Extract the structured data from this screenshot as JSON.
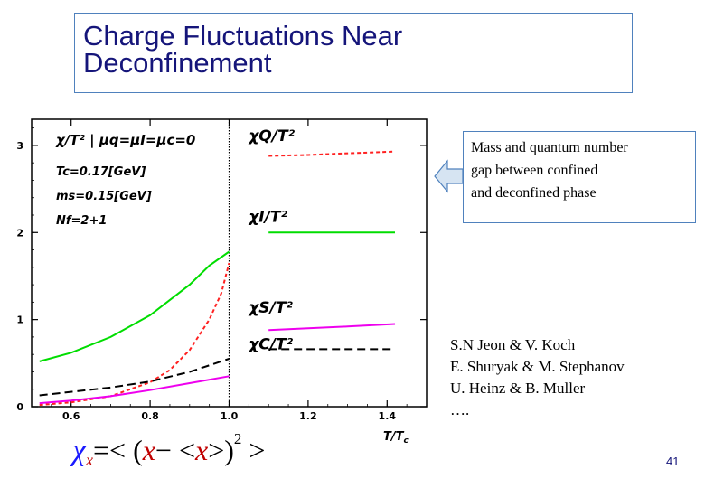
{
  "slide": {
    "title_line1": "Charge Fluctuations Near",
    "title_line2": "Deconfinement",
    "callout_lines": [
      "Mass and quantum number",
      "gap between confined",
      "and deconfined phase"
    ],
    "authors": [
      "S.N Jeon & V. Koch",
      "E. Shuryak & M. Stephanov",
      "U. Heinz & B. Muller",
      "…."
    ],
    "page_number": "41",
    "formula": {
      "chi": "χ",
      "sub": "x",
      "eq_open": "=< (",
      "x1": "x",
      "minus": "− <",
      "x2": "x",
      "close": ">)",
      "sup": "2",
      "end": " >"
    },
    "colors": {
      "title": "#15157a",
      "box_border": "#4f81bd",
      "arrow_fill": "#d6e4f2"
    },
    "arrow_icon": "left-arrow"
  },
  "chart_data": {
    "type": "line",
    "xlim": [
      0.5,
      1.5
    ],
    "ylim": [
      0,
      3.3
    ],
    "x_ticks": [
      "0.6",
      "0.8",
      "1.0",
      "1.2",
      "1.4"
    ],
    "x_tick_values": [
      0.6,
      0.8,
      1.0,
      1.2,
      1.4
    ],
    "y_ticks": [
      "0",
      "1",
      "2",
      "3"
    ],
    "y_tick_values": [
      0,
      1,
      2,
      3
    ],
    "xlabel": "T/T",
    "xlabel_sub": "c",
    "transition_x": 1.0,
    "grid": false,
    "annotations": [
      {
        "text": "χ/T² | μq=μI=μc=0"
      },
      {
        "text": "Tc=0.17[GeV]"
      },
      {
        "text": "ms=0.15[GeV]"
      },
      {
        "text": "Nf=2+1"
      }
    ],
    "series": [
      {
        "name": "χQ/T²",
        "label_pos": [
          1.05,
          3.05
        ],
        "color": "#ff2020",
        "dash": "4,3",
        "x": [
          0.52,
          0.6,
          0.7,
          0.8,
          0.85,
          0.9,
          0.95,
          0.98,
          1.0,
          1.1,
          1.2,
          1.3,
          1.42
        ],
        "y": [
          0.02,
          0.05,
          0.12,
          0.28,
          0.42,
          0.65,
          1.0,
          1.3,
          1.65,
          2.88,
          2.89,
          2.91,
          2.93
        ]
      },
      {
        "name": "χI/T²",
        "label_pos": [
          1.05,
          2.12
        ],
        "color": "#00dd00",
        "dash": "",
        "x": [
          0.52,
          0.6,
          0.7,
          0.8,
          0.9,
          0.95,
          1.0,
          1.1,
          1.2,
          1.3,
          1.42
        ],
        "y": [
          0.52,
          0.62,
          0.8,
          1.05,
          1.4,
          1.62,
          1.78,
          2.0,
          2.0,
          2.0,
          2.0
        ]
      },
      {
        "name": "χS/T²",
        "label_pos": [
          1.05,
          1.08
        ],
        "color": "#ee00ee",
        "dash": "",
        "x": [
          0.52,
          0.6,
          0.7,
          0.8,
          0.9,
          1.0,
          1.1,
          1.2,
          1.3,
          1.42
        ],
        "y": [
          0.04,
          0.07,
          0.12,
          0.19,
          0.27,
          0.35,
          0.88,
          0.9,
          0.92,
          0.95
        ]
      },
      {
        "name": "χC/T²",
        "label_pos": [
          1.05,
          0.66
        ],
        "color": "#000000",
        "dash": "9,5",
        "x": [
          0.52,
          0.6,
          0.7,
          0.8,
          0.9,
          1.0,
          1.1,
          1.2,
          1.3,
          1.42
        ],
        "y": [
          0.13,
          0.17,
          0.22,
          0.29,
          0.4,
          0.55,
          0.66,
          0.66,
          0.66,
          0.66
        ]
      }
    ]
  }
}
